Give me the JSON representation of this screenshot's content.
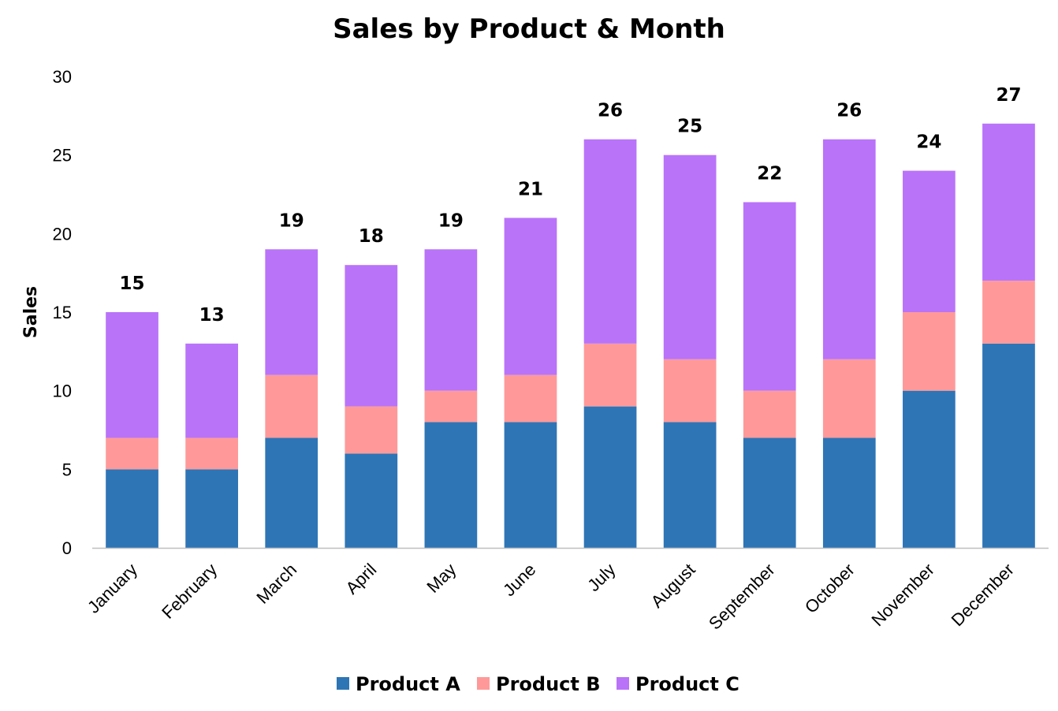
{
  "chart_data": {
    "type": "bar",
    "stacked": true,
    "title": "Sales by Product & Month",
    "xlabel": "",
    "ylabel": "Sales",
    "ylim": [
      0,
      30
    ],
    "yticks": [
      "0",
      "5",
      "10",
      "15",
      "20",
      "25",
      "30"
    ],
    "grid": false,
    "legend_position": "bottom",
    "categories": [
      "January",
      "February",
      "March",
      "April",
      "May",
      "June",
      "July",
      "August",
      "September",
      "October",
      "November",
      "December"
    ],
    "series": [
      {
        "name": "Product A",
        "color": "#2e75b6",
        "values": [
          5,
          5,
          7,
          6,
          8,
          8,
          9,
          8,
          7,
          7,
          10,
          13
        ]
      },
      {
        "name": "Product B",
        "color": "#ff9999",
        "values": [
          2,
          2,
          4,
          3,
          2,
          3,
          4,
          4,
          3,
          5,
          5,
          4
        ]
      },
      {
        "name": "Product C",
        "color": "#b973f9",
        "values": [
          8,
          6,
          8,
          9,
          9,
          10,
          13,
          13,
          12,
          14,
          9,
          10
        ]
      }
    ],
    "totals": [
      "15",
      "13",
      "19",
      "18",
      "19",
      "21",
      "26",
      "25",
      "22",
      "26",
      "24",
      "27"
    ]
  }
}
